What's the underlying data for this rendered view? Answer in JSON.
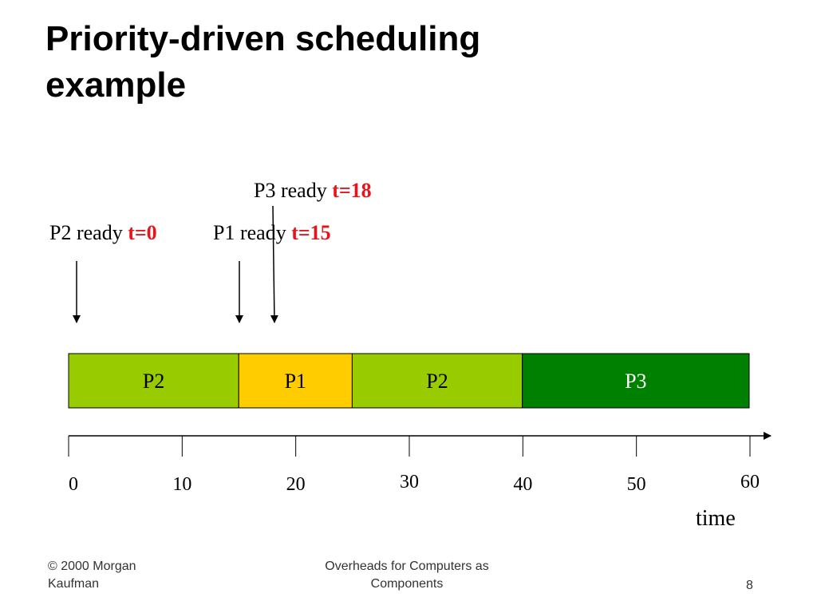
{
  "title": {
    "line1": "Priority-driven scheduling",
    "line2": "example"
  },
  "events": {
    "p3": {
      "text": "P3 ready ",
      "time": "t=18"
    },
    "p2": {
      "text": "P2 ready ",
      "time": "t=0"
    },
    "p1": {
      "text": "P1 ready ",
      "time": "t=15"
    }
  },
  "timeline": {
    "segments": [
      {
        "label": "P2",
        "start": 0,
        "end": 15,
        "color": "#99cc00",
        "text_color": "#000000"
      },
      {
        "label": "P1",
        "start": 15,
        "end": 25,
        "color": "#ffcc00",
        "text_color": "#000000"
      },
      {
        "label": "P2",
        "start": 25,
        "end": 40,
        "color": "#99cc00",
        "text_color": "#000000"
      },
      {
        "label": "P3",
        "start": 40,
        "end": 60,
        "color": "#008000",
        "text_color": "#ffffff"
      }
    ],
    "ticks": [
      "0",
      "10",
      "20",
      "30",
      "40",
      "50",
      "60"
    ],
    "axis_label": "time"
  },
  "footer": {
    "left": "© 2000 Morgan Kaufman",
    "center": "Overheads for Computers as Components",
    "page": "8"
  }
}
